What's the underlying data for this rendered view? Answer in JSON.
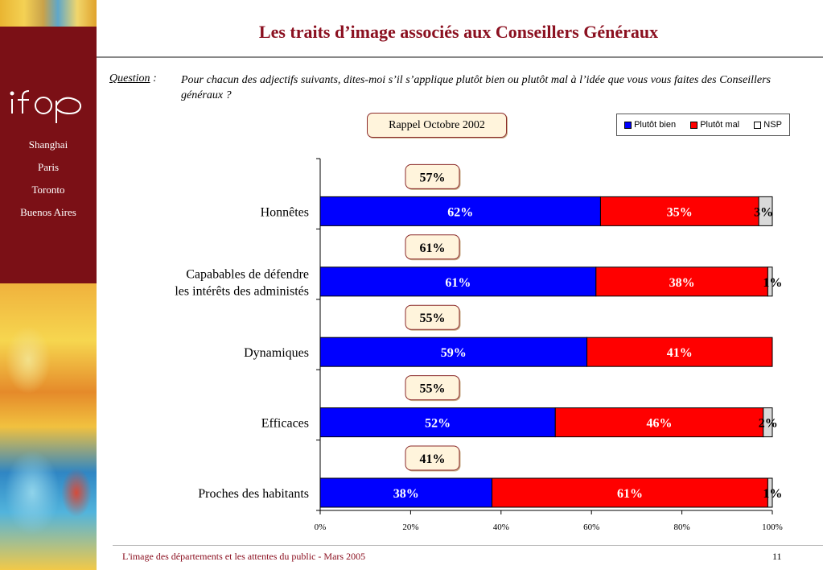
{
  "title": "Les traits d’image associés aux Conseillers Généraux",
  "logo_text": "ifop",
  "cities": [
    "Shanghai",
    "Paris",
    "Toronto",
    "Buenos Aires"
  ],
  "question": {
    "label": "Question",
    "label_suffix": " :",
    "text": "Pour chacun des adjectifs suivants, dites-moi s’il s’applique plutôt bien ou plutôt mal à l’idée que vous vous faites des Conseillers généraux ?"
  },
  "rappel_label": "Rappel Octobre 2002",
  "legend": [
    {
      "label": "Plutôt bien",
      "color": "#0000ff"
    },
    {
      "label": "Plutôt mal",
      "color": "#ff0000"
    },
    {
      "label": "NSP",
      "color": "#d9d9d9"
    }
  ],
  "chart_data": {
    "type": "bar",
    "orientation": "horizontal",
    "stacked": true,
    "categories": [
      "Honnêtes",
      "Capabables de défendre\nles intérêts des administés",
      "Dynamiques",
      "Efficaces",
      "Proches des habitants"
    ],
    "series": [
      {
        "name": "Plutôt bien",
        "values": [
          62,
          61,
          59,
          52,
          38
        ],
        "color": "#0000ff"
      },
      {
        "name": "Plutôt mal",
        "values": [
          35,
          38,
          41,
          46,
          61
        ],
        "color": "#ff0000"
      },
      {
        "name": "NSP",
        "values": [
          3,
          1,
          0,
          2,
          1
        ],
        "color": "#d9d9d9"
      }
    ],
    "data_labels": [
      [
        "62%",
        "35%",
        "3%"
      ],
      [
        "61%",
        "38%",
        "1%"
      ],
      [
        "59%",
        "41%",
        ""
      ],
      [
        "52%",
        "46%",
        "2%"
      ],
      [
        "38%",
        "61%",
        "1%"
      ]
    ],
    "rappel_octobre_2002": [
      "57%",
      "61%",
      "55%",
      "55%",
      "41%"
    ],
    "xlim": [
      0,
      100
    ],
    "xticks": [
      "0%",
      "20%",
      "40%",
      "60%",
      "80%",
      "100%"
    ],
    "legend_position": "top-right",
    "grid": false
  },
  "footer": {
    "left": "L'image des départements et les attentes du public - Mars 2005",
    "page": "11"
  }
}
